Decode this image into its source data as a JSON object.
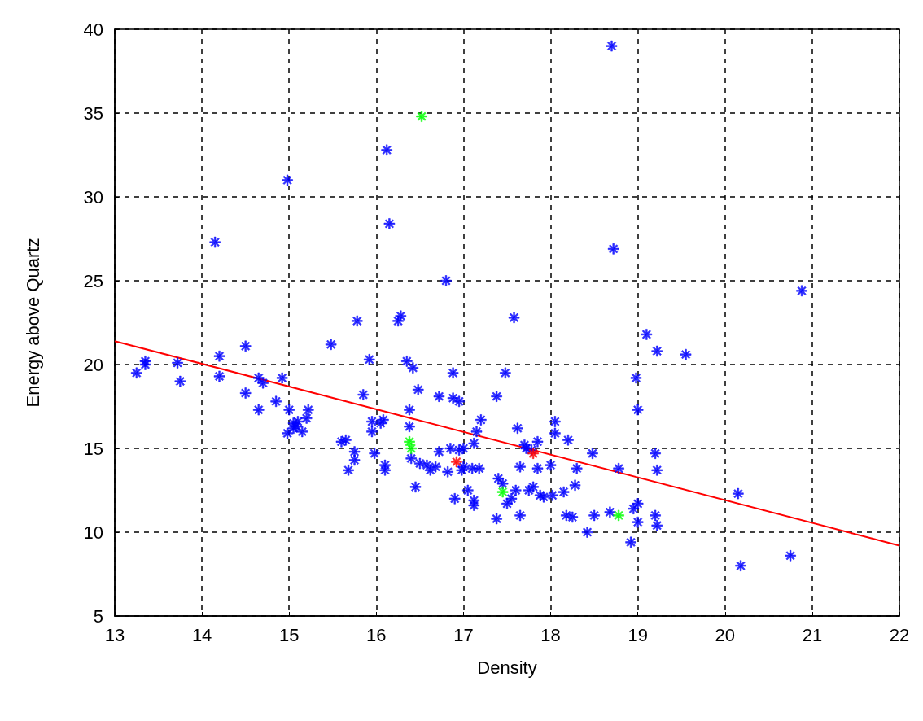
{
  "chart_data": {
    "type": "scatter",
    "xlabel": "Density",
    "ylabel": "Energy above Quartz",
    "xlim": [
      13,
      22
    ],
    "xticks": [
      13,
      14,
      15,
      16,
      17,
      18,
      19,
      20,
      21,
      22
    ],
    "ylim": [
      5,
      40
    ],
    "yticks": [
      5,
      10,
      15,
      20,
      25,
      30,
      35,
      40
    ],
    "grid": true,
    "series": [
      {
        "marker": "star",
        "color": "#0000ff",
        "x": [
          13.25,
          13.35,
          13.35,
          13.72,
          13.75,
          14.15,
          14.2,
          14.2,
          14.5,
          14.5,
          14.65,
          14.65,
          14.7,
          14.85,
          14.92,
          14.98,
          14.98,
          15.0,
          15.05,
          15.05,
          15.1,
          15.15,
          15.2,
          15.22,
          15.08,
          15.48,
          15.6,
          15.65,
          15.68,
          15.75,
          15.75,
          15.78,
          15.85,
          15.92,
          15.95,
          15.95,
          15.98,
          16.05,
          16.08,
          16.1,
          16.1,
          16.12,
          16.15,
          16.25,
          16.28,
          16.35,
          16.38,
          16.38,
          16.4,
          16.42,
          16.45,
          16.48,
          16.5,
          16.58,
          16.62,
          16.68,
          16.72,
          16.72,
          16.8,
          16.82,
          16.85,
          16.88,
          16.88,
          16.9,
          16.95,
          16.95,
          17.0,
          17.0,
          16.98,
          17.05,
          17.1,
          17.12,
          17.12,
          17.12,
          17.15,
          17.2,
          17.18,
          17.38,
          17.38,
          17.4,
          17.45,
          17.48,
          17.5,
          17.55,
          17.58,
          17.6,
          17.62,
          17.65,
          17.65,
          17.7,
          17.72,
          17.75,
          17.78,
          17.8,
          17.85,
          17.85,
          17.88,
          17.92,
          18.0,
          18.02,
          18.05,
          18.05,
          18.15,
          18.18,
          18.2,
          18.25,
          18.28,
          18.3,
          18.42,
          18.48,
          18.5,
          18.68,
          18.7,
          18.72,
          18.78,
          18.92,
          18.95,
          18.98,
          19.0,
          19.0,
          19.0,
          19.1,
          19.22,
          19.2,
          19.2,
          19.22,
          19.22,
          19.55,
          20.15,
          20.18,
          20.75,
          20.88
        ],
        "values": [
          19.5,
          20.0,
          20.2,
          20.1,
          19.0,
          27.3,
          19.3,
          20.5,
          21.1,
          18.3,
          19.2,
          17.3,
          18.9,
          17.8,
          19.2,
          31.0,
          15.9,
          17.3,
          16.5,
          16.2,
          16.6,
          16.0,
          16.8,
          17.3,
          16.3,
          21.2,
          15.4,
          15.5,
          13.7,
          14.3,
          14.8,
          22.6,
          18.2,
          20.3,
          16.6,
          16.0,
          14.7,
          16.5,
          16.7,
          13.7,
          14.0,
          32.8,
          28.4,
          22.6,
          22.9,
          20.2,
          17.3,
          16.3,
          14.4,
          19.8,
          12.7,
          18.5,
          14.1,
          14.0,
          13.7,
          13.9,
          18.1,
          14.8,
          25.0,
          13.6,
          15.0,
          19.5,
          18.0,
          12.0,
          17.8,
          14.9,
          15.0,
          13.9,
          13.7,
          12.5,
          13.8,
          11.6,
          11.9,
          15.3,
          16.0,
          16.7,
          13.8,
          18.1,
          10.8,
          13.2,
          12.9,
          19.5,
          11.7,
          12.0,
          22.8,
          12.5,
          16.2,
          11.0,
          13.9,
          15.2,
          15.0,
          12.5,
          14.9,
          12.7,
          13.8,
          15.4,
          12.2,
          12.1,
          14.0,
          12.2,
          16.6,
          15.9,
          12.4,
          11.0,
          15.5,
          10.9,
          12.8,
          13.8,
          10.0,
          14.7,
          11.0,
          11.2,
          39.0,
          26.9,
          13.8,
          9.4,
          11.4,
          19.2,
          17.3,
          11.7,
          10.6,
          21.8,
          20.8,
          14.7,
          11.0,
          13.7,
          10.4,
          20.6,
          12.3,
          8.0,
          8.6,
          24.4
        ]
      },
      {
        "marker": "star",
        "color": "#00ff00",
        "x": [
          16.52,
          16.38,
          16.4,
          17.45,
          18.78
        ],
        "values": [
          34.8,
          15.4,
          15.0,
          12.4,
          11.0
        ]
      },
      {
        "marker": "star",
        "color": "#ff0000",
        "x": [
          16.92,
          17.8
        ],
        "values": [
          14.2,
          14.7
        ]
      },
      {
        "type": "line",
        "marker": "none",
        "color": "#ff0000",
        "x": [
          13,
          22
        ],
        "values": [
          21.4,
          9.2
        ]
      }
    ]
  }
}
